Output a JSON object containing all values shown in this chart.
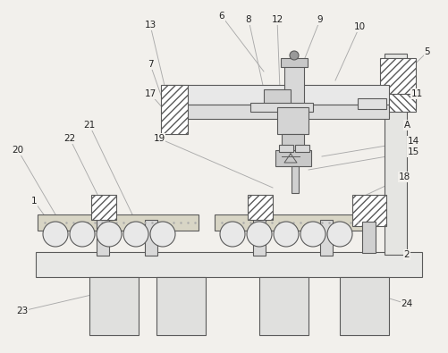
{
  "bg_color": "#f2f0ec",
  "lc": "#5a5a5a",
  "lw": 0.8,
  "label_fs": 7.5,
  "label_color": "#222222",
  "leaders": [
    [
      "1",
      38,
      225,
      62,
      258
    ],
    [
      "2",
      455,
      285,
      430,
      285
    ],
    [
      "5",
      478,
      58,
      445,
      90
    ],
    [
      "6",
      248,
      18,
      295,
      80
    ],
    [
      "7",
      168,
      72,
      183,
      115
    ],
    [
      "8",
      278,
      22,
      295,
      100
    ],
    [
      "9",
      358,
      22,
      335,
      80
    ],
    [
      "10",
      402,
      30,
      375,
      90
    ],
    [
      "11",
      466,
      105,
      438,
      118
    ],
    [
      "12",
      310,
      22,
      313,
      100
    ],
    [
      "13",
      168,
      28,
      185,
      100
    ],
    [
      "14",
      462,
      158,
      360,
      175
    ],
    [
      "15",
      462,
      170,
      345,
      190
    ],
    [
      "17",
      168,
      105,
      190,
      130
    ],
    [
      "18",
      452,
      198,
      395,
      225
    ],
    [
      "19",
      178,
      155,
      305,
      210
    ],
    [
      "20",
      20,
      168,
      62,
      240
    ],
    [
      "21",
      100,
      140,
      148,
      240
    ],
    [
      "22",
      78,
      155,
      120,
      240
    ],
    [
      "23",
      25,
      348,
      145,
      320
    ],
    [
      "24",
      455,
      340,
      390,
      320
    ],
    [
      "A",
      455,
      140,
      438,
      158
    ]
  ]
}
